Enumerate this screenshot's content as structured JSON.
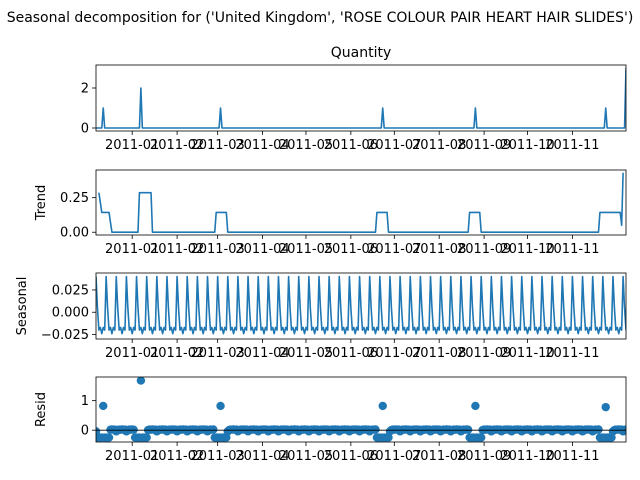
{
  "figure": {
    "suptitle": "Seasonal decomposition for ('United Kingdom', 'ROSE COLOUR PAIR HEART HAIR SLIDES')"
  },
  "chart_data": [
    {
      "type": "line",
      "panel": "observed",
      "title": "Quantity",
      "ylabel": "",
      "xlim": [
        "2010-12-07",
        "2011-12-08"
      ],
      "ylim": [
        -0.15,
        3.15
      ],
      "yticks": [
        0,
        2
      ],
      "x_ticks": [
        "2011-01",
        "2011-02",
        "2011-03",
        "2011-04",
        "2011-05",
        "2011-06",
        "2011-07",
        "2011-08",
        "2011-09",
        "2011-10",
        "2011-11"
      ],
      "spikes": [
        {
          "date": "2010-12-12",
          "value": 1
        },
        {
          "date": "2011-01-07",
          "value": 2
        },
        {
          "date": "2011-03-03",
          "value": 1
        },
        {
          "date": "2011-06-23",
          "value": 1
        },
        {
          "date": "2011-08-26",
          "value": 1
        },
        {
          "date": "2011-11-24",
          "value": 1
        },
        {
          "date": "2011-12-08",
          "value": 3
        }
      ],
      "baseline_value": 0
    },
    {
      "type": "line",
      "panel": "trend",
      "ylabel": "Trend",
      "xlim": [
        "2010-12-07",
        "2011-12-08"
      ],
      "ylim": [
        -0.02,
        0.45
      ],
      "yticks": [
        0.0,
        0.25
      ],
      "ytick_labels": [
        "0.00",
        "0.25"
      ],
      "x_ticks": [
        "2011-01",
        "2011-02",
        "2011-03",
        "2011-04",
        "2011-05",
        "2011-06",
        "2011-07",
        "2011-08",
        "2011-09",
        "2011-10",
        "2011-11"
      ],
      "points": [
        [
          "2010-12-09",
          0.286
        ],
        [
          "2010-12-11",
          0.143
        ],
        [
          "2010-12-16",
          0.143
        ],
        [
          "2010-12-18",
          0.0
        ],
        [
          "2011-01-05",
          0.0
        ],
        [
          "2011-01-06",
          0.286
        ],
        [
          "2011-01-14",
          0.286
        ],
        [
          "2011-01-15",
          0.0
        ],
        [
          "2011-02-27",
          0.0
        ],
        [
          "2011-02-28",
          0.143
        ],
        [
          "2011-03-07",
          0.143
        ],
        [
          "2011-03-08",
          0.0
        ],
        [
          "2011-06-18",
          0.0
        ],
        [
          "2011-06-19",
          0.143
        ],
        [
          "2011-06-26",
          0.143
        ],
        [
          "2011-06-27",
          0.0
        ],
        [
          "2011-08-21",
          0.0
        ],
        [
          "2011-08-22",
          0.143
        ],
        [
          "2011-08-29",
          0.143
        ],
        [
          "2011-08-30",
          0.0
        ],
        [
          "2011-11-19",
          0.0
        ],
        [
          "2011-11-20",
          0.143
        ],
        [
          "2011-12-04",
          0.143
        ],
        [
          "2011-12-05",
          0.05
        ],
        [
          "2011-12-06",
          0.43
        ]
      ]
    },
    {
      "type": "line",
      "panel": "seasonal",
      "ylabel": "Seasonal",
      "xlim": [
        "2010-12-07",
        "2011-12-08"
      ],
      "ylim": [
        -0.03,
        0.044
      ],
      "yticks": [
        -0.025,
        0.0,
        0.025
      ],
      "ytick_labels": [
        "−0.025",
        "0.000",
        "0.025"
      ],
      "x_ticks": [
        "2011-01",
        "2011-02",
        "2011-03",
        "2011-04",
        "2011-05",
        "2011-06",
        "2011-07",
        "2011-08",
        "2011-09",
        "2011-10",
        "2011-11"
      ],
      "period_days": 7,
      "weekly_pattern": [
        0.04,
        0.005,
        -0.02,
        -0.017,
        -0.024,
        -0.017,
        -0.02
      ]
    },
    {
      "type": "scatter",
      "panel": "resid",
      "ylabel": "Resid",
      "xlim": [
        "2010-12-07",
        "2011-12-08"
      ],
      "ylim": [
        -0.4,
        1.8
      ],
      "yticks": [
        0,
        1
      ],
      "x_ticks": [
        "2011-01",
        "2011-02",
        "2011-03",
        "2011-04",
        "2011-05",
        "2011-06",
        "2011-07",
        "2011-08",
        "2011-09",
        "2011-10",
        "2011-11"
      ],
      "outliers": [
        {
          "date": "2010-12-12",
          "value": 0.82
        },
        {
          "date": "2011-01-07",
          "value": 1.68
        },
        {
          "date": "2011-03-03",
          "value": 0.82
        },
        {
          "date": "2011-06-23",
          "value": 0.82
        },
        {
          "date": "2011-08-26",
          "value": 0.82
        },
        {
          "date": "2011-11-24",
          "value": 0.78
        }
      ],
      "spike_neighbourhood_value": -0.25,
      "baseline_pattern": [
        -0.04,
        0.005,
        0.02,
        0.017,
        0.024,
        0.017,
        0.02
      ]
    }
  ]
}
